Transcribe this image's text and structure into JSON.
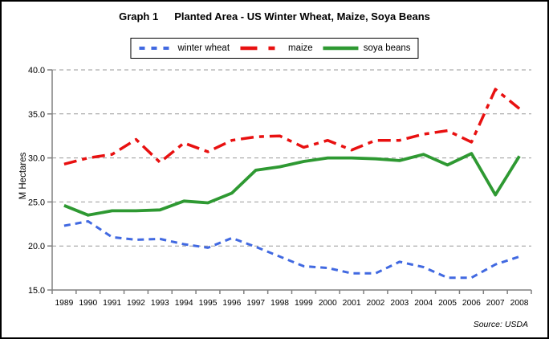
{
  "chart_data": {
    "type": "line",
    "title": "Graph 1  Planted Area - US Winter Wheat, Maize, Soya Beans",
    "title_prefix": "Graph 1",
    "title_main": "Planted Area - US Winter Wheat, Maize, Soya Beans",
    "ylabel": "M Hectares",
    "xlabel": "",
    "source": "Source: USDA",
    "x": [
      1989,
      1990,
      1991,
      1992,
      1993,
      1994,
      1995,
      1996,
      1997,
      1998,
      1999,
      2000,
      2001,
      2002,
      2003,
      2004,
      2005,
      2006,
      2007,
      2008
    ],
    "series": [
      {
        "name": "winter wheat",
        "color": "#4169E1",
        "style": "dashed",
        "values": [
          22.3,
          22.8,
          21.0,
          20.7,
          20.8,
          20.2,
          19.8,
          20.9,
          19.9,
          18.8,
          17.7,
          17.5,
          16.9,
          16.9,
          18.2,
          17.6,
          16.4,
          16.4,
          17.9,
          18.8
        ]
      },
      {
        "name": "maize",
        "color": "#E81010",
        "style": "dash-dot",
        "values": [
          29.3,
          30.0,
          30.4,
          32.1,
          29.5,
          31.7,
          30.7,
          32.0,
          32.4,
          32.5,
          31.2,
          32.0,
          30.9,
          32.0,
          32.0,
          32.7,
          33.1,
          31.8,
          37.8,
          35.6
        ]
      },
      {
        "name": "soya beans",
        "color": "#2E9932",
        "style": "solid",
        "values": [
          24.6,
          23.5,
          24.0,
          24.0,
          24.1,
          25.1,
          24.9,
          26.0,
          28.6,
          29.0,
          29.6,
          30.0,
          30.0,
          29.9,
          29.7,
          30.4,
          29.2,
          30.5,
          25.8,
          30.2
        ]
      }
    ],
    "ylim": [
      15,
      40
    ],
    "yticks": [
      15,
      20,
      25,
      30,
      35,
      40
    ],
    "ytick_labels": [
      "15.0",
      "20.0",
      "25.0",
      "30.0",
      "35.0",
      "40.0"
    ],
    "grid": true,
    "gridline_color": "#999999",
    "axis_color": "#808080",
    "legend_position": "top"
  }
}
